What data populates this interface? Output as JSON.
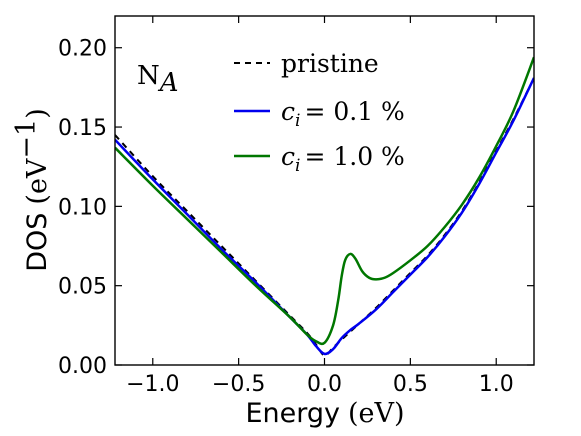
{
  "chart_data": {
    "type": "line",
    "annotation": "N",
    "annotation_sub": "A",
    "xlabel": "Energy",
    "xlabel_unit": "(eV)",
    "ylabel": "DOS",
    "ylabel_unit": "(eV",
    "ylabel_unit_exp": "−1",
    "ylabel_unit_close": ")",
    "xlim": [
      -1.22,
      1.22
    ],
    "ylim": [
      0.0,
      0.22
    ],
    "xticks": [
      -1.0,
      -0.5,
      0.0,
      0.5,
      1.0
    ],
    "xtick_labels": [
      "−1.0",
      "−0.5",
      "0.0",
      "0.5",
      "1.0"
    ],
    "yticks": [
      0.0,
      0.05,
      0.1,
      0.15,
      0.2
    ],
    "ytick_labels": [
      "0.00",
      "0.05",
      "0.10",
      "0.15",
      "0.20"
    ],
    "grid": false,
    "legend_position": "top-right",
    "series": [
      {
        "name": "pristine",
        "color": "#000000",
        "dash": true,
        "x": [
          -1.22,
          -1.0,
          -0.8,
          -0.6,
          -0.4,
          -0.2,
          -0.1,
          -0.05,
          0.0,
          0.05,
          0.1,
          0.2,
          0.3,
          0.4,
          0.5,
          0.6,
          0.7,
          0.8,
          0.9,
          1.0,
          1.1,
          1.22
        ],
        "y": [
          0.145,
          0.119,
          0.097,
          0.075,
          0.053,
          0.031,
          0.02,
          0.013,
          0.006,
          0.011,
          0.016,
          0.026,
          0.036,
          0.047,
          0.058,
          0.069,
          0.082,
          0.097,
          0.115,
          0.135,
          0.155,
          0.181
        ]
      },
      {
        "name": "c_i = 0.1 %",
        "label_var": "c",
        "label_sub": "i",
        "label_value": "= 0.1 %",
        "color": "#0000ee",
        "dash": false,
        "x": [
          -1.22,
          -1.0,
          -0.8,
          -0.6,
          -0.4,
          -0.2,
          -0.1,
          -0.05,
          0.0,
          0.05,
          0.1,
          0.15,
          0.2,
          0.3,
          0.4,
          0.5,
          0.6,
          0.7,
          0.8,
          0.9,
          1.0,
          1.1,
          1.22
        ],
        "y": [
          0.142,
          0.117,
          0.095,
          0.073,
          0.052,
          0.03,
          0.019,
          0.012,
          0.007,
          0.01,
          0.017,
          0.022,
          0.026,
          0.035,
          0.046,
          0.057,
          0.068,
          0.081,
          0.096,
          0.114,
          0.134,
          0.154,
          0.181
        ]
      },
      {
        "name": "c_i = 1.0 %",
        "label_var": "c",
        "label_sub": "i",
        "label_value": "= 1.0 %",
        "color": "#007700",
        "dash": false,
        "x": [
          -1.22,
          -1.0,
          -0.8,
          -0.6,
          -0.4,
          -0.2,
          -0.1,
          -0.05,
          0.0,
          0.05,
          0.08,
          0.1,
          0.12,
          0.15,
          0.18,
          0.22,
          0.26,
          0.3,
          0.35,
          0.4,
          0.5,
          0.6,
          0.7,
          0.8,
          0.9,
          1.0,
          1.1,
          1.22
        ],
        "y": [
          0.137,
          0.113,
          0.092,
          0.071,
          0.05,
          0.03,
          0.019,
          0.015,
          0.014,
          0.025,
          0.041,
          0.056,
          0.066,
          0.07,
          0.067,
          0.059,
          0.055,
          0.054,
          0.055,
          0.058,
          0.066,
          0.075,
          0.087,
          0.101,
          0.118,
          0.138,
          0.16,
          0.194
        ]
      }
    ]
  }
}
